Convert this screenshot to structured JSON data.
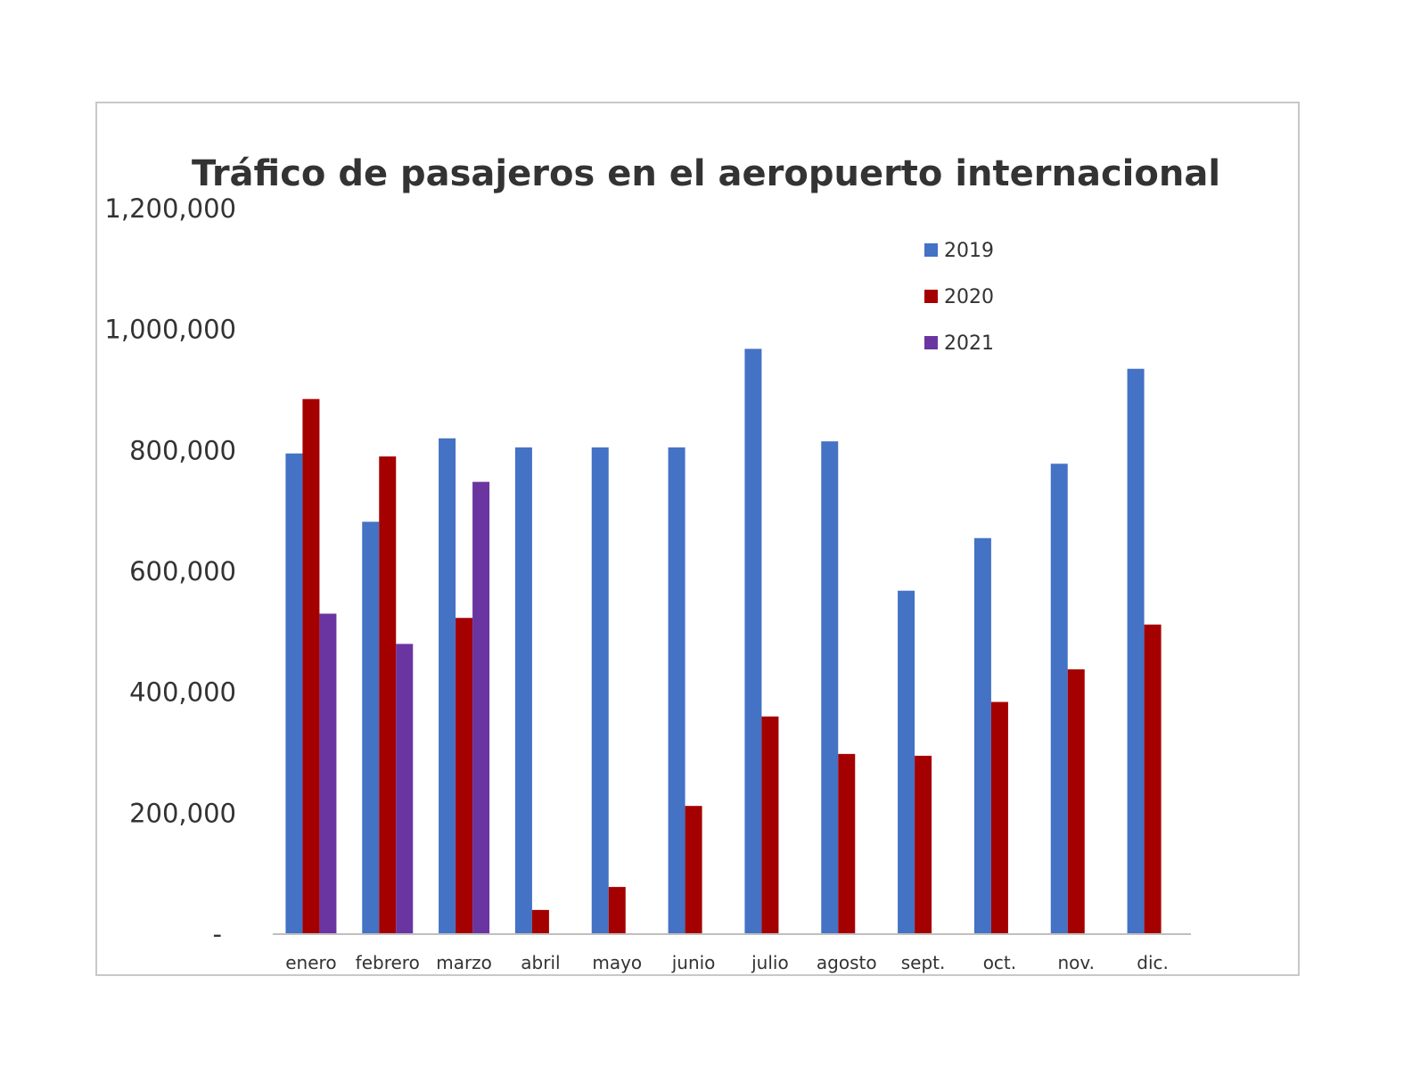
{
  "chart_data": {
    "type": "bar",
    "title": "Tráfico de pasajeros en el aeropuerto internacional",
    "xlabel": "",
    "ylabel": "",
    "ylim": [
      0,
      1200000
    ],
    "yticks": [
      0,
      200000,
      400000,
      600000,
      800000,
      1000000,
      1200000
    ],
    "ytick_labels": [
      "-",
      "200,000",
      "400,000",
      "600,000",
      "800,000",
      "1,000,000",
      "1,200,000"
    ],
    "categories": [
      "enero",
      "febrero",
      "marzo",
      "abril",
      "mayo",
      "junio",
      "julio",
      "agosto",
      "sept.",
      "oct.",
      "nov.",
      "dic."
    ],
    "series": [
      {
        "name": "2019",
        "color": "#4472c4",
        "values": [
          795000,
          682000,
          820000,
          805000,
          805000,
          805000,
          968000,
          815000,
          568000,
          655000,
          778000,
          935000
        ]
      },
      {
        "name": "2020",
        "color": "#a50000",
        "values": [
          885000,
          790000,
          523000,
          40000,
          78000,
          212000,
          360000,
          298000,
          295000,
          384000,
          438000,
          512000
        ]
      },
      {
        "name": "2021",
        "color": "#6a35a0",
        "values": [
          530000,
          480000,
          748000,
          null,
          null,
          null,
          null,
          null,
          null,
          null,
          null,
          null
        ]
      }
    ],
    "grid": false,
    "legend_position": "top-right"
  }
}
